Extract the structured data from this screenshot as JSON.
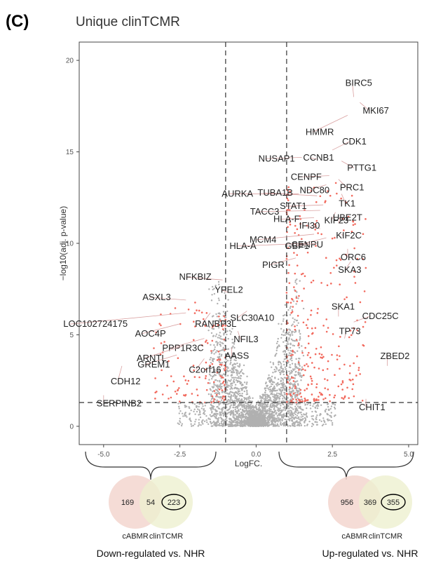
{
  "figure": {
    "panel_letter": "(C)",
    "title": "Unique clinTCMR"
  },
  "chart_data": {
    "type": "scatter",
    "title": "Unique clinTCMR",
    "xlabel": "LogFC.",
    "ylabel": "−log10(adj. p-value)",
    "xlim": [
      -5.8,
      5.3
    ],
    "ylim": [
      -1,
      21
    ],
    "xticks": [
      -5.0,
      -2.5,
      0.0,
      2.5,
      5.0
    ],
    "xtick_labels": [
      "-5.0",
      "-2.5",
      "0.0",
      "2.5",
      "5.0"
    ],
    "yticks": [
      0,
      5,
      10,
      15,
      20
    ],
    "ytick_labels": [
      "0",
      "5",
      "10",
      "15",
      "20"
    ],
    "grid": false,
    "thresholds": {
      "logfc": [
        -1,
        1
      ],
      "neglog10p": 1.3
    },
    "colors": {
      "significant": "#f26a5e",
      "not_significant": "#b0b0b0",
      "label_line": "#d9a0a0"
    },
    "labeled_genes": [
      {
        "gene": "BIRC5",
        "x": 3.2,
        "y": 18.0
      },
      {
        "gene": "MKI67",
        "x": 3.4,
        "y": 17.7
      },
      {
        "gene": "HMMR",
        "x": 3.0,
        "y": 17.0
      },
      {
        "gene": "CDK1",
        "x": 2.5,
        "y": 15.1
      },
      {
        "gene": "PTTG1",
        "x": 2.8,
        "y": 14.5
      },
      {
        "gene": "NUSAP1",
        "x": 1.5,
        "y": 14.7
      },
      {
        "gene": "CCNB1",
        "x": 2.0,
        "y": 14.6
      },
      {
        "gene": "CENPF",
        "x": 2.4,
        "y": 13.7
      },
      {
        "gene": "PRC1",
        "x": 2.7,
        "y": 13.5
      },
      {
        "gene": "NDC80",
        "x": 2.3,
        "y": 13.2
      },
      {
        "gene": "AURKA",
        "x": 1.4,
        "y": 12.7
      },
      {
        "gene": "TUBA1B",
        "x": 2.0,
        "y": 12.6
      },
      {
        "gene": "TK1",
        "x": 2.8,
        "y": 12.7
      },
      {
        "gene": "STAT1",
        "x": 2.2,
        "y": 12.1
      },
      {
        "gene": "TACC3",
        "x": 2.1,
        "y": 11.8
      },
      {
        "gene": "KIF23",
        "x": 2.6,
        "y": 11.7
      },
      {
        "gene": "HLA-F",
        "x": 1.9,
        "y": 11.4
      },
      {
        "gene": "UBE2T",
        "x": 2.7,
        "y": 11.1
      },
      {
        "gene": "IFI30",
        "x": 2.1,
        "y": 10.8
      },
      {
        "gene": "MCM4",
        "x": 1.9,
        "y": 10.5
      },
      {
        "gene": "KIF2C",
        "x": 2.8,
        "y": 10.5
      },
      {
        "gene": "CENPU",
        "x": 2.3,
        "y": 10.3
      },
      {
        "gene": "HLA-A",
        "x": 1.7,
        "y": 10.0
      },
      {
        "gene": "GBP1",
        "x": 2.0,
        "y": 10.0
      },
      {
        "gene": "ORC6",
        "x": 3.0,
        "y": 9.7
      },
      {
        "gene": "PIGR",
        "x": 1.3,
        "y": 9.2
      },
      {
        "gene": "SKA3",
        "x": 3.1,
        "y": 9.0
      },
      {
        "gene": "NFKBIZ",
        "x": -1.1,
        "y": 8.0
      },
      {
        "gene": "YPEL2",
        "x": -0.9,
        "y": 7.3
      },
      {
        "gene": "ASXL3",
        "x": -2.3,
        "y": 6.9
      },
      {
        "gene": "SLC30A10",
        "x": -0.3,
        "y": 6.3
      },
      {
        "gene": "LOC102724175",
        "x": -2.3,
        "y": 6.2
      },
      {
        "gene": "RANBP3L",
        "x": -1.5,
        "y": 6.2
      },
      {
        "gene": "AOC4P",
        "x": -2.5,
        "y": 5.6
      },
      {
        "gene": "NFIL3",
        "x": -0.6,
        "y": 5.2
      },
      {
        "gene": "PPP1R3C",
        "x": -1.7,
        "y": 4.8
      },
      {
        "gene": "ARNTL",
        "x": -2.4,
        "y": 4.4
      },
      {
        "gene": "AASS",
        "x": -0.8,
        "y": 4.3
      },
      {
        "gene": "GREM1",
        "x": -2.6,
        "y": 3.9
      },
      {
        "gene": "C2orf16",
        "x": -1.7,
        "y": 3.7
      },
      {
        "gene": "CDH12",
        "x": -4.4,
        "y": 3.3
      },
      {
        "gene": "SERPINB2",
        "x": -5.0,
        "y": 1.7
      },
      {
        "gene": "SKA1",
        "x": 2.7,
        "y": 6.0
      },
      {
        "gene": "CDC25C",
        "x": 3.2,
        "y": 5.7
      },
      {
        "gene": "TP73",
        "x": 2.9,
        "y": 4.8
      },
      {
        "gene": "ZBED2",
        "x": 4.3,
        "y": 3.3
      },
      {
        "gene": "CHIT1",
        "x": 3.6,
        "y": 1.5
      }
    ]
  },
  "venn": [
    {
      "sets": [
        "cABMR",
        "clinTCMR"
      ],
      "left_only": "169",
      "overlap": "54",
      "right_only": "223",
      "caption": "Down-regulated vs. NHR",
      "highlight_color": "#000000"
    },
    {
      "sets": [
        "cABMR",
        "clinTCMR"
      ],
      "left_only": "956",
      "overlap": "369",
      "right_only": "355",
      "caption": "Up-regulated vs. NHR",
      "highlight_color": "#000000"
    }
  ],
  "colors": {
    "venn_left": "#f3d6cf",
    "venn_right": "#eef0cf"
  }
}
